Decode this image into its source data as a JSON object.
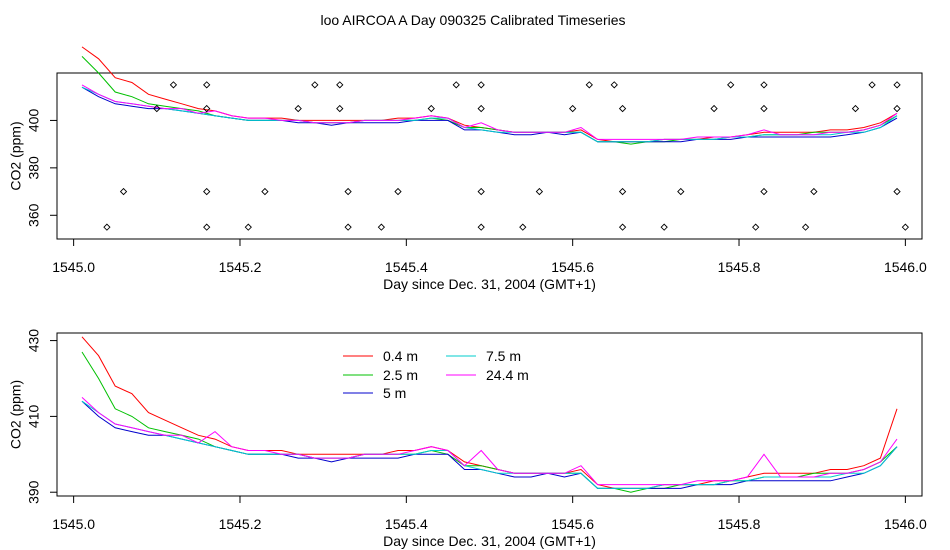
{
  "page_title": "loo AIRCOA A  Day 090325  Calibrated Timeseries",
  "chart_data": [
    {
      "type": "line",
      "xlabel": "Day since Dec. 31, 2004 (GMT+1)",
      "ylabel": "CO2 (ppm)",
      "xlim": [
        1544.98,
        1546.02
      ],
      "ylim": [
        350,
        420
      ],
      "x_ticks": [
        "1545.0",
        "1545.2",
        "1545.4",
        "1545.6",
        "1545.8",
        "1546.0"
      ],
      "y_ticks": [
        "360",
        "380",
        "400"
      ],
      "grid": false,
      "x": [
        1545.01,
        1545.03,
        1545.05,
        1545.07,
        1545.09,
        1545.11,
        1545.13,
        1545.15,
        1545.17,
        1545.19,
        1545.21,
        1545.23,
        1545.25,
        1545.27,
        1545.29,
        1545.31,
        1545.33,
        1545.35,
        1545.37,
        1545.39,
        1545.41,
        1545.43,
        1545.45,
        1545.47,
        1545.49,
        1545.51,
        1545.53,
        1545.55,
        1545.57,
        1545.59,
        1545.61,
        1545.63,
        1545.65,
        1545.67,
        1545.69,
        1545.71,
        1545.73,
        1545.75,
        1545.77,
        1545.79,
        1545.81,
        1545.83,
        1545.85,
        1545.87,
        1545.89,
        1545.91,
        1545.93,
        1545.95,
        1545.97,
        1545.99
      ],
      "series": [
        {
          "name": "0.4 m",
          "color": "#ff0000",
          "values": [
            431,
            426,
            418,
            416,
            411,
            409,
            407,
            405,
            404,
            402,
            401,
            401,
            401,
            400,
            400,
            400,
            400,
            400,
            400,
            401,
            401,
            402,
            401,
            398,
            397,
            396,
            395,
            395,
            395,
            395,
            396,
            392,
            391,
            391,
            391,
            392,
            392,
            392,
            393,
            393,
            394,
            395,
            395,
            395,
            395,
            396,
            396,
            397,
            399,
            403
          ]
        },
        {
          "name": "2.5 m",
          "color": "#00c000",
          "values": [
            427,
            420,
            412,
            410,
            407,
            406,
            405,
            404,
            402,
            401,
            400,
            400,
            400,
            400,
            399,
            399,
            399,
            400,
            400,
            400,
            400,
            401,
            400,
            397,
            397,
            396,
            395,
            395,
            395,
            395,
            395,
            391,
            391,
            390,
            391,
            391,
            392,
            392,
            392,
            393,
            393,
            394,
            394,
            394,
            395,
            395,
            395,
            396,
            398,
            402
          ]
        },
        {
          "name": "5 m",
          "color": "#0000cc",
          "values": [
            414,
            410,
            407,
            406,
            405,
            405,
            404,
            403,
            402,
            401,
            400,
            400,
            400,
            399,
            399,
            398,
            399,
            399,
            399,
            399,
            400,
            400,
            400,
            396,
            396,
            395,
            394,
            394,
            395,
            394,
            395,
            391,
            391,
            391,
            391,
            391,
            391,
            392,
            392,
            392,
            393,
            393,
            393,
            393,
            393,
            393,
            394,
            395,
            397,
            401
          ]
        },
        {
          "name": "7.5 m",
          "color": "#00cccc",
          "values": [
            414,
            411,
            408,
            407,
            406,
            405,
            404,
            403,
            402,
            401,
            400,
            400,
            400,
            400,
            399,
            399,
            399,
            400,
            400,
            400,
            400,
            401,
            401,
            397,
            396,
            395,
            395,
            395,
            395,
            395,
            395,
            391,
            391,
            391,
            391,
            392,
            392,
            392,
            392,
            393,
            393,
            394,
            394,
            394,
            394,
            394,
            395,
            395,
            397,
            402
          ]
        },
        {
          "name": "24.4 m",
          "color": "#ff00ff",
          "values": [
            415,
            411,
            408,
            407,
            406,
            405,
            405,
            403,
            404,
            402,
            401,
            401,
            400,
            400,
            399,
            399,
            399,
            400,
            400,
            400,
            401,
            402,
            401,
            397,
            399,
            396,
            395,
            395,
            395,
            395,
            397,
            392,
            392,
            392,
            392,
            392,
            392,
            393,
            393,
            393,
            394,
            396,
            394,
            394,
            394,
            395,
            395,
            396,
            398,
            403
          ]
        }
      ]
    },
    {
      "type": "line",
      "xlabel": "Day since Dec. 31, 2004 (GMT+1)",
      "ylabel": "CO2 (ppm)",
      "xlim": [
        1544.98,
        1546.02
      ],
      "ylim": [
        389,
        432
      ],
      "x_ticks": [
        "1545.0",
        "1545.2",
        "1545.4",
        "1545.6",
        "1545.8",
        "1546.0"
      ],
      "y_ticks": [
        "390",
        "410",
        "430"
      ],
      "grid": false,
      "legend_position": "top-left",
      "legend": [
        "0.4 m",
        "2.5 m",
        "5 m",
        "7.5 m",
        "24.4 m"
      ],
      "x": [
        1545.01,
        1545.03,
        1545.05,
        1545.07,
        1545.09,
        1545.11,
        1545.13,
        1545.15,
        1545.17,
        1545.19,
        1545.21,
        1545.23,
        1545.25,
        1545.27,
        1545.29,
        1545.31,
        1545.33,
        1545.35,
        1545.37,
        1545.39,
        1545.41,
        1545.43,
        1545.45,
        1545.47,
        1545.49,
        1545.51,
        1545.53,
        1545.55,
        1545.57,
        1545.59,
        1545.61,
        1545.63,
        1545.65,
        1545.67,
        1545.69,
        1545.71,
        1545.73,
        1545.75,
        1545.77,
        1545.79,
        1545.81,
        1545.83,
        1545.85,
        1545.87,
        1545.89,
        1545.91,
        1545.93,
        1545.95,
        1545.97,
        1545.99
      ],
      "series": [
        {
          "name": "0.4 m",
          "color": "#ff0000",
          "values": [
            431,
            426,
            418,
            416,
            411,
            409,
            407,
            405,
            404,
            402,
            401,
            401,
            401,
            400,
            400,
            400,
            400,
            400,
            400,
            401,
            401,
            402,
            401,
            398,
            397,
            396,
            395,
            395,
            395,
            395,
            396,
            392,
            391,
            391,
            391,
            392,
            392,
            392,
            393,
            393,
            394,
            395,
            395,
            395,
            395,
            396,
            396,
            397,
            399,
            412
          ]
        },
        {
          "name": "2.5 m",
          "color": "#00c000",
          "values": [
            427,
            420,
            412,
            410,
            407,
            406,
            405,
            404,
            402,
            401,
            400,
            400,
            400,
            400,
            399,
            399,
            399,
            400,
            400,
            400,
            400,
            401,
            400,
            397,
            397,
            396,
            395,
            395,
            395,
            395,
            395,
            391,
            391,
            390,
            391,
            391,
            392,
            392,
            392,
            393,
            393,
            394,
            394,
            394,
            395,
            395,
            395,
            396,
            398,
            402
          ]
        },
        {
          "name": "5 m",
          "color": "#0000cc",
          "values": [
            414,
            410,
            407,
            406,
            405,
            405,
            404,
            403,
            402,
            401,
            400,
            400,
            400,
            399,
            399,
            398,
            399,
            399,
            399,
            399,
            400,
            400,
            400,
            396,
            396,
            395,
            394,
            394,
            395,
            394,
            395,
            391,
            391,
            391,
            391,
            391,
            391,
            392,
            392,
            392,
            393,
            393,
            393,
            393,
            393,
            393,
            394,
            395,
            397,
            402
          ]
        },
        {
          "name": "7.5 m",
          "color": "#00cccc",
          "values": [
            414,
            411,
            408,
            407,
            406,
            405,
            404,
            403,
            402,
            401,
            400,
            400,
            400,
            400,
            399,
            399,
            399,
            400,
            400,
            400,
            400,
            401,
            401,
            397,
            396,
            395,
            395,
            395,
            395,
            395,
            395,
            391,
            391,
            391,
            391,
            392,
            392,
            392,
            392,
            393,
            393,
            394,
            394,
            394,
            394,
            394,
            395,
            395,
            397,
            402
          ]
        },
        {
          "name": "24.4 m",
          "color": "#ff00ff",
          "values": [
            415,
            411,
            408,
            407,
            406,
            405,
            405,
            403,
            406,
            402,
            401,
            401,
            400,
            400,
            399,
            399,
            399,
            400,
            400,
            400,
            401,
            402,
            401,
            397,
            401,
            396,
            395,
            395,
            395,
            395,
            397,
            392,
            392,
            392,
            392,
            392,
            392,
            393,
            393,
            393,
            394,
            400,
            394,
            394,
            394,
            395,
            395,
            396,
            398,
            404
          ]
        }
      ]
    }
  ],
  "valve_markers": [
    {
      "x": 1545.12,
      "y": 415
    },
    {
      "x": 1545.16,
      "y": 415
    },
    {
      "x": 1545.29,
      "y": 415
    },
    {
      "x": 1545.32,
      "y": 415
    },
    {
      "x": 1545.46,
      "y": 415
    },
    {
      "x": 1545.49,
      "y": 415
    },
    {
      "x": 1545.62,
      "y": 415
    },
    {
      "x": 1545.65,
      "y": 415
    },
    {
      "x": 1545.79,
      "y": 415
    },
    {
      "x": 1545.83,
      "y": 415
    },
    {
      "x": 1545.96,
      "y": 415
    },
    {
      "x": 1545.99,
      "y": 415
    },
    {
      "x": 1545.1,
      "y": 405
    },
    {
      "x": 1545.16,
      "y": 405
    },
    {
      "x": 1545.27,
      "y": 405
    },
    {
      "x": 1545.32,
      "y": 405
    },
    {
      "x": 1545.43,
      "y": 405
    },
    {
      "x": 1545.49,
      "y": 405
    },
    {
      "x": 1545.6,
      "y": 405
    },
    {
      "x": 1545.66,
      "y": 405
    },
    {
      "x": 1545.77,
      "y": 405
    },
    {
      "x": 1545.83,
      "y": 405
    },
    {
      "x": 1545.94,
      "y": 405
    },
    {
      "x": 1545.99,
      "y": 405
    },
    {
      "x": 1545.06,
      "y": 370
    },
    {
      "x": 1545.16,
      "y": 370
    },
    {
      "x": 1545.23,
      "y": 370
    },
    {
      "x": 1545.33,
      "y": 370
    },
    {
      "x": 1545.39,
      "y": 370
    },
    {
      "x": 1545.49,
      "y": 370
    },
    {
      "x": 1545.56,
      "y": 370
    },
    {
      "x": 1545.66,
      "y": 370
    },
    {
      "x": 1545.73,
      "y": 370
    },
    {
      "x": 1545.83,
      "y": 370
    },
    {
      "x": 1545.89,
      "y": 370
    },
    {
      "x": 1545.99,
      "y": 370
    },
    {
      "x": 1545.04,
      "y": 355
    },
    {
      "x": 1545.16,
      "y": 355
    },
    {
      "x": 1545.21,
      "y": 355
    },
    {
      "x": 1545.33,
      "y": 355
    },
    {
      "x": 1545.37,
      "y": 355
    },
    {
      "x": 1545.49,
      "y": 355
    },
    {
      "x": 1545.54,
      "y": 355
    },
    {
      "x": 1545.66,
      "y": 355
    },
    {
      "x": 1545.71,
      "y": 355
    },
    {
      "x": 1545.82,
      "y": 355
    },
    {
      "x": 1545.88,
      "y": 355
    },
    {
      "x": 1546.0,
      "y": 355
    }
  ]
}
